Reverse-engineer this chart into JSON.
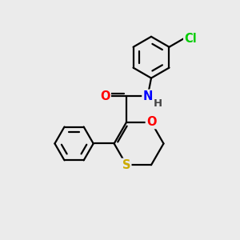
{
  "bg_color": "#ebebeb",
  "bond_color": "#000000",
  "bond_width": 1.6,
  "atom_colors": {
    "O": "#ff0000",
    "S": "#ccaa00",
    "N": "#0000ff",
    "Cl": "#00cc00",
    "C": "#000000",
    "H": "#444444"
  },
  "font_size": 10.5,
  "fig_size": [
    3.0,
    3.0
  ],
  "dpi": 100
}
